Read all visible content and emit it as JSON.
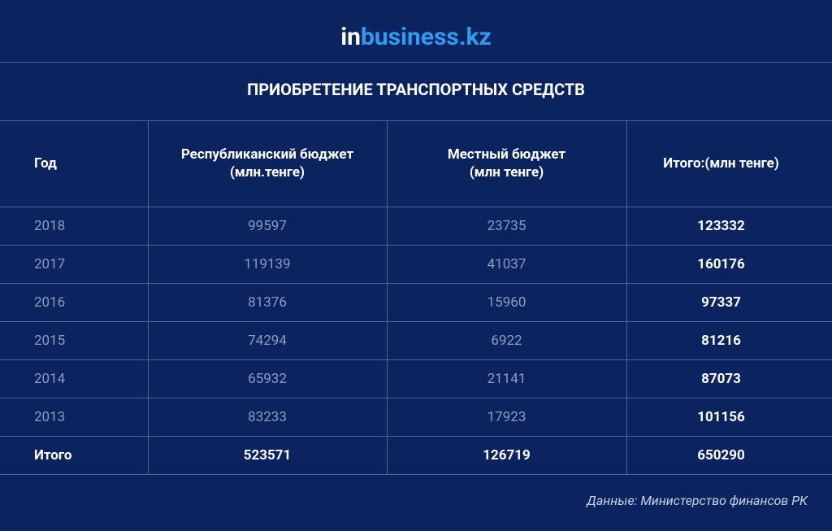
{
  "header": {
    "logo_left": "in",
    "logo_right": "business.kz",
    "title": "ПРИОБРЕТЕНИЕ ТРАНСПОРТНЫХ СРЕДСТВ"
  },
  "table": {
    "columns": [
      "Год",
      "Республиканский бюджет (млн.тенге)",
      "Местный бюджет (млн тенге)",
      "Итого:(млн тенге)"
    ],
    "rows": [
      [
        "2018",
        "99597",
        "23735",
        "123332"
      ],
      [
        "2017",
        "119139",
        "41037",
        "160176"
      ],
      [
        "2016",
        "81376",
        "15960",
        "97337"
      ],
      [
        "2015",
        "74294",
        "6922",
        "81216"
      ],
      [
        "2014",
        "65932",
        "21141",
        "87073"
      ],
      [
        "2013",
        "83233",
        "17923",
        "101156"
      ],
      [
        "Итого",
        "523571",
        "126719",
        "650290"
      ]
    ]
  },
  "footer": {
    "source": "Данные:  Министерство финансов РК"
  }
}
